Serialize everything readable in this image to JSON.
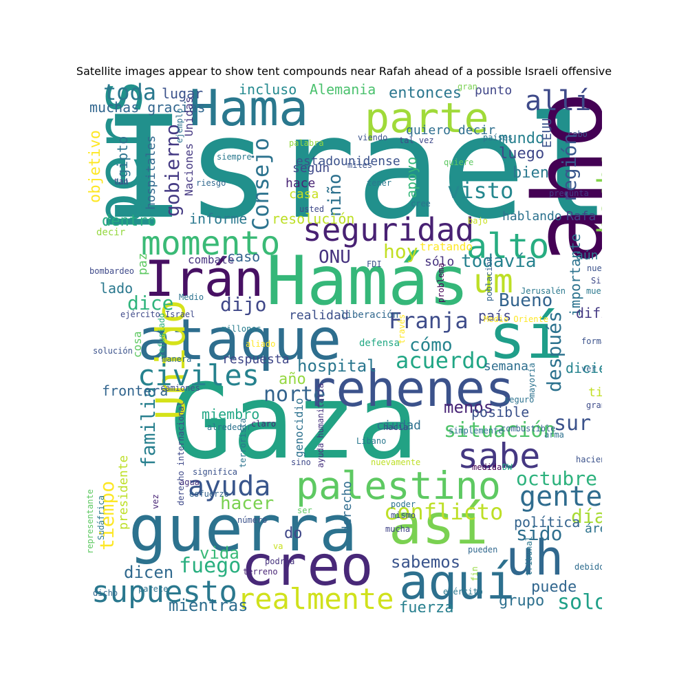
{
  "title": "Satellite images appear to show tent compounds near Rafah ahead of a possible Israeli offensive",
  "words": [
    {
      "text": "Israel",
      "color": "#21908c"
    },
    {
      "text": "Gaza",
      "color": "#22a284"
    },
    {
      "text": "ahora",
      "color": "#440154"
    },
    {
      "text": "Hamás",
      "color": "#35b779"
    },
    {
      "text": "Hama",
      "color": "#2a788e"
    },
    {
      "text": "persona",
      "color": "#21918c"
    },
    {
      "text": "guerra",
      "color": "#2c728e"
    },
    {
      "text": "ataque",
      "color": "#2e6e8e"
    },
    {
      "text": "rehenes",
      "color": "#3b528b"
    },
    {
      "text": "sí",
      "color": "#1f9e89"
    },
    {
      "text": "así",
      "color": "#7ad151"
    },
    {
      "text": "creo",
      "color": "#482878"
    },
    {
      "text": "parte",
      "color": "#a0da39"
    },
    {
      "text": "Irán",
      "color": "#471063"
    },
    {
      "text": "aquí",
      "color": "#2d708e"
    },
    {
      "text": "palestino",
      "color": "#5ec962"
    },
    {
      "text": "uh",
      "color": "#31688e"
    },
    {
      "text": "Unido",
      "color": "#d5e21a"
    },
    {
      "text": "momento",
      "color": "#3aba76"
    },
    {
      "text": "seguridad",
      "color": "#482173"
    },
    {
      "text": "alto",
      "color": "#27ad81"
    },
    {
      "text": "sabe",
      "color": "#453882"
    },
    {
      "text": "supuesto",
      "color": "#2a788e"
    },
    {
      "text": "realmente",
      "color": "#d0e11c"
    },
    {
      "text": "civiles",
      "color": "#26828e"
    },
    {
      "text": "hecho",
      "color": "#83d34b"
    },
    {
      "text": "allí",
      "color": "#3e4a89"
    },
    {
      "text": "um",
      "color": "#bddf26"
    },
    {
      "text": "ayuda",
      "color": "#39568c"
    },
    {
      "text": "gente",
      "color": "#2f6c8e"
    },
    {
      "text": "conflicto",
      "color": "#bddf26"
    },
    {
      "text": "situación",
      "color": "#50c46a"
    },
    {
      "text": "octubre",
      "color": "#2db27d"
    },
    {
      "text": "toda",
      "color": "#2a788e"
    },
    {
      "text": "Franja",
      "color": "#3e4c8a"
    },
    {
      "text": "acuerdo",
      "color": "#21a685"
    },
    {
      "text": "visto",
      "color": "#24878e"
    },
    {
      "text": "Consejo",
      "color": "#2c738e"
    },
    {
      "text": "gobierno",
      "color": "#443a83"
    },
    {
      "text": "todavía",
      "color": "#26828e"
    },
    {
      "text": "norte",
      "color": "#33638d"
    },
    {
      "text": "fuego",
      "color": "#29af7f"
    },
    {
      "text": "solo",
      "color": "#1fa088"
    },
    {
      "text": "familia",
      "color": "#277f8e"
    },
    {
      "text": "tiempo",
      "color": "#fde725"
    },
    {
      "text": "sur",
      "color": "#3b528b"
    },
    {
      "text": "región",
      "color": "#39568c"
    },
    {
      "text": "después",
      "color": "#2c728e"
    },
    {
      "text": "Bueno",
      "color": "#33638d"
    },
    {
      "text": "dijo",
      "color": "#3f4788"
    },
    {
      "text": "dice",
      "color": "#2fb47c"
    },
    {
      "text": "hacer",
      "color": "#7ad151"
    },
    {
      "text": "sido",
      "color": "#2e6f8e"
    },
    {
      "text": "día",
      "color": "#a8db34"
    },
    {
      "text": "hoy",
      "color": "#c2df23"
    },
    {
      "text": "ONU",
      "color": "#46337f"
    },
    {
      "text": "niño",
      "color": "#2d718e"
    },
    {
      "text": "cómo",
      "color": "#25848e"
    },
    {
      "text": "hospital",
      "color": "#2a768e"
    },
    {
      "text": "menos",
      "color": "#482576"
    },
    {
      "text": "dicen",
      "color": "#30698e"
    },
    {
      "text": "sabemos",
      "color": "#3a548c"
    },
    {
      "text": "mientras",
      "color": "#2e6d8e"
    },
    {
      "text": "vida",
      "color": "#38b977"
    },
    {
      "text": "puede",
      "color": "#31668e"
    },
    {
      "text": "grupo",
      "color": "#2d708e"
    },
    {
      "text": "fuerza",
      "color": "#277f8e"
    },
    {
      "text": "importante",
      "color": "#2c738e"
    },
    {
      "text": "mundo",
      "color": "#27808e"
    },
    {
      "text": "luego",
      "color": "#3f4788"
    },
    {
      "text": "bien",
      "color": "#2a788e"
    },
    {
      "text": "apoyo",
      "color": "#35b779"
    },
    {
      "text": "entonces",
      "color": "#2a768e"
    },
    {
      "text": "Alemania",
      "color": "#4ac16d"
    },
    {
      "text": "incluso",
      "color": "#23898e"
    },
    {
      "text": "lugar",
      "color": "#3b528b"
    },
    {
      "text": "muchas gracias",
      "color": "#31668e"
    },
    {
      "text": "objetivo",
      "color": "#fde725"
    },
    {
      "text": "Egipto",
      "color": "#2c738e"
    },
    {
      "text": "hospitales",
      "color": "#31688e"
    },
    {
      "text": "Naciones Unidas",
      "color": "#453882"
    },
    {
      "text": "estadounidense",
      "color": "#3b528b"
    },
    {
      "text": "quiero decir",
      "color": "#2e6e8e"
    },
    {
      "text": "punto",
      "color": "#404688"
    },
    {
      "text": "primer ministro",
      "color": "#3e4a89"
    },
    {
      "text": "pregunta",
      "color": "#443983"
    },
    {
      "text": "EEUU",
      "color": "#3b528b"
    },
    {
      "text": "Rafa",
      "color": "#414487"
    },
    {
      "text": "hablando",
      "color": "#2c728e"
    },
    {
      "text": "informe",
      "color": "#2a788e"
    },
    {
      "text": "resolución",
      "color": "#bddf26"
    },
    {
      "text": "casa",
      "color": "#c8e020"
    },
    {
      "text": "hace",
      "color": "#482475"
    },
    {
      "text": "según",
      "color": "#3e4989"
    },
    {
      "text": "dentro",
      "color": "#27ad81"
    },
    {
      "text": "caso",
      "color": "#33638d"
    },
    {
      "text": "combate",
      "color": "#46337f"
    },
    {
      "text": "paz",
      "color": "#5ec962"
    },
    {
      "text": "lado",
      "color": "#2a788e"
    },
    {
      "text": "realidad",
      "color": "#3c4f8a"
    },
    {
      "text": "país",
      "color": "#404688"
    },
    {
      "text": "difícil",
      "color": "#443983"
    },
    {
      "text": "diciendo",
      "color": "#25838e"
    },
    {
      "text": "semana",
      "color": "#2e6e8e"
    },
    {
      "text": "respuesta",
      "color": "#3f4788"
    },
    {
      "text": "frontera",
      "color": "#32658e"
    },
    {
      "text": "año",
      "color": "#95d840"
    },
    {
      "text": "miembro",
      "color": "#22a785"
    },
    {
      "text": "posible",
      "color": "#3b528b"
    },
    {
      "text": "ciudad",
      "color": "#2d718e"
    },
    {
      "text": "política",
      "color": "#33638d"
    },
    {
      "text": "área",
      "color": "#2c728e"
    },
    {
      "text": "derecho",
      "color": "#2f6c8e"
    },
    {
      "text": "do",
      "color": "#3f4788"
    },
    {
      "text": "presidente",
      "color": "#bddf26"
    },
    {
      "text": "sólo",
      "color": "#46327e"
    },
    {
      "text": "aún",
      "color": "#2a788e"
    },
    {
      "text": "tipo",
      "color": "#c2df23"
    },
    {
      "text": "genocidio",
      "color": "#2d718e"
    },
    {
      "text": "ayuda humanitaria",
      "color": "#46327e"
    },
    {
      "text": "cosa",
      "color": "#5ec962"
    },
    {
      "text": "tratando",
      "color": "#fde725"
    },
    {
      "text": "FDI",
      "color": "#3b528b"
    },
    {
      "text": "liberación",
      "color": "#31688e"
    },
    {
      "text": "defensa",
      "color": "#22a884"
    },
    {
      "text": "ejército Israel",
      "color": "#3e4989"
    },
    {
      "text": "millones",
      "color": "#287d8e"
    },
    {
      "text": "solución",
      "color": "#3b528b"
    },
    {
      "text": "manera",
      "color": "#30698e"
    },
    {
      "text": "refugiado",
      "color": "#29af7f"
    },
    {
      "text": "aliado",
      "color": "#fde725"
    },
    {
      "text": "camiones",
      "color": "#3e4c8a"
    },
    {
      "text": "alrededor",
      "color": "#2c728e"
    },
    {
      "text": "derecho internacional",
      "color": "#3e4989"
    },
    {
      "text": "claro",
      "color": "#482878"
    },
    {
      "text": "terrorista",
      "color": "#2c738e"
    },
    {
      "text": "significa",
      "color": "#3b528b"
    },
    {
      "text": "agua",
      "color": "#46327e"
    },
    {
      "text": "esfuerzo",
      "color": "#33638d"
    },
    {
      "text": "representante",
      "color": "#5ec962"
    },
    {
      "text": "Sudáfrica",
      "color": "#2a788e"
    },
    {
      "text": "vez",
      "color": "#482576"
    },
    {
      "text": "número",
      "color": "#3b528b"
    },
    {
      "text": "terreno",
      "color": "#482475"
    },
    {
      "text": "podría",
      "color": "#46327e"
    },
    {
      "text": "parece",
      "color": "#2c728e"
    },
    {
      "text": "dicho",
      "color": "#31688e"
    },
    {
      "text": "ser",
      "color": "#5ec962"
    },
    {
      "text": "va",
      "color": "#c8e020"
    },
    {
      "text": "mucha",
      "color": "#414487"
    },
    {
      "text": "mismo",
      "color": "#3e4c8a"
    },
    {
      "text": "poder",
      "color": "#2c728e"
    },
    {
      "text": "pueden",
      "color": "#31688e"
    },
    {
      "text": "fin",
      "color": "#95d840"
    },
    {
      "text": "tribunal",
      "color": "#2a768e"
    },
    {
      "text": "debido",
      "color": "#2f6c8e"
    },
    {
      "text": "cualquier",
      "color": "#fde725"
    },
    {
      "text": "ejército",
      "color": "#2a788e"
    },
    {
      "text": "nuevamente",
      "color": "#bddf26"
    },
    {
      "text": "sino",
      "color": "#3e4989"
    },
    {
      "text": "medida",
      "color": "#440154"
    },
    {
      "text": "DW",
      "color": "#22a884"
    },
    {
      "text": "haciendo",
      "color": "#3b528b"
    },
    {
      "text": "arma",
      "color": "#2d708e"
    },
    {
      "text": "simplemente",
      "color": "#2c728e"
    },
    {
      "text": "combustible",
      "color": "#33638d"
    },
    {
      "text": "Líbano",
      "color": "#2a788e"
    },
    {
      "text": "hacia",
      "color": "#3e4989"
    },
    {
      "text": "seguro",
      "color": "#2c728e"
    },
    {
      "text": "grande",
      "color": "#3e4c8a"
    },
    {
      "text": "ver",
      "color": "#31688e"
    },
    {
      "text": "mayoría",
      "color": "#2c728e"
    },
    {
      "text": "forma",
      "color": "#3b528b"
    },
    {
      "text": "Medio Oriente",
      "color": "#fde725"
    },
    {
      "text": "muerto",
      "color": "#2a788e"
    },
    {
      "text": "Siria",
      "color": "#3e4989"
    },
    {
      "text": "Jerusalén",
      "color": "#2a788e"
    },
    {
      "text": "población",
      "color": "#33638d"
    },
    {
      "text": "problema",
      "color": "#440154"
    },
    {
      "text": "través",
      "color": "#fde725"
    },
    {
      "text": "nuevo",
      "color": "#3b528b"
    },
    {
      "text": "bajo",
      "color": "#c8e020"
    },
    {
      "text": "usted",
      "color": "#3e4989"
    },
    {
      "text": "cree",
      "color": "#2c728e"
    },
    {
      "text": "tener",
      "color": "#2a788e"
    },
    {
      "text": "miles",
      "color": "#3b528b"
    },
    {
      "text": "quiere",
      "color": "#5ec962"
    },
    {
      "text": "tal vez",
      "color": "#3e4989"
    },
    {
      "text": "países",
      "color": "#2c728e"
    },
    {
      "text": "palabra",
      "color": "#95d840"
    },
    {
      "text": "viendo",
      "color": "#3b528b"
    },
    {
      "text": "riesgo",
      "color": "#31688e"
    },
    {
      "text": "siempre",
      "color": "#2a788e"
    },
    {
      "text": "tan",
      "color": "#3e4989"
    },
    {
      "text": "ejemplo",
      "color": "#2c728e"
    },
    {
      "text": "gran",
      "color": "#7ad151"
    },
    {
      "text": "cabo",
      "color": "#3b528b"
    },
    {
      "text": "decir",
      "color": "#95d840"
    },
    {
      "text": "bombardeo",
      "color": "#3e4989"
    },
    {
      "text": "Medio",
      "color": "#2c728e"
    }
  ]
}
